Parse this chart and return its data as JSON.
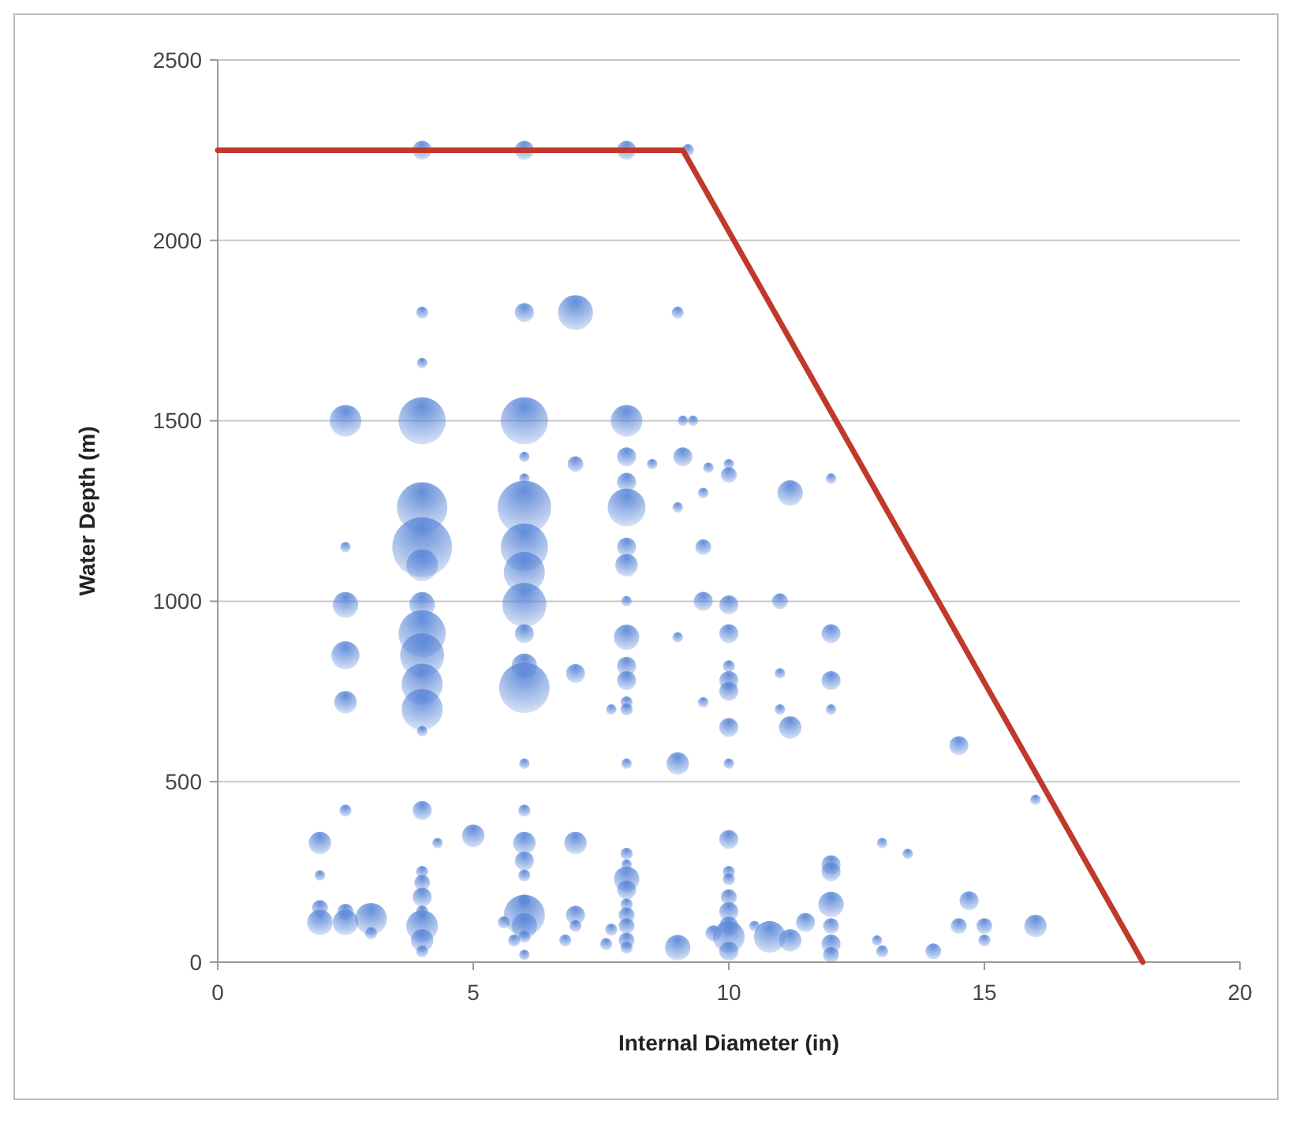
{
  "chart_data": {
    "type": "bubble",
    "xlabel": "Internal Diameter (in)",
    "ylabel": "Water Depth (m)",
    "xlim": [
      0,
      20
    ],
    "xticks": [
      0,
      5,
      10,
      15,
      20
    ],
    "ylim": [
      0,
      2500
    ],
    "yticks": [
      0,
      500,
      1000,
      1500,
      2000,
      2500
    ],
    "grid": "y",
    "relative": false,
    "series": [
      {
        "color": "#5b87d8",
        "x": [
          4,
          6,
          8,
          9.2,
          4,
          6,
          7,
          9,
          4,
          2.5,
          4,
          6,
          8,
          9.1,
          9.3,
          6,
          7,
          8,
          8.5,
          9.1,
          8,
          6,
          9.6,
          10,
          10,
          9.5,
          9,
          11.2,
          12,
          4,
          6,
          8,
          4,
          6,
          4,
          6,
          8,
          8,
          2.5,
          9.5,
          2.5,
          4,
          6,
          8,
          9.5,
          10,
          11,
          4,
          4,
          4,
          4,
          2.5,
          2.5,
          6,
          6,
          6,
          7,
          8,
          8,
          8,
          8,
          8,
          7.7,
          9,
          9.5,
          10,
          10,
          10,
          10,
          10,
          11,
          11,
          11.2,
          12,
          12,
          12,
          14.5,
          6,
          8,
          9,
          10,
          16,
          4,
          2.5,
          4,
          6,
          2,
          4.3,
          5,
          6,
          7,
          8,
          8,
          2,
          4,
          4,
          4,
          4,
          6,
          6,
          6,
          6,
          6,
          6,
          6,
          5.6,
          5.8,
          6.8,
          7,
          7,
          7.7,
          7.6,
          8,
          8,
          8,
          8,
          8,
          8,
          8,
          2,
          2,
          2.5,
          2.5,
          3,
          3,
          4,
          4,
          4,
          9,
          9.7,
          10,
          10,
          10,
          10,
          10,
          10,
          10,
          10,
          10.5,
          10.8,
          11.2,
          11.5,
          12,
          12,
          12,
          12,
          12,
          12,
          12.9,
          13,
          13.5,
          13,
          14,
          14.5,
          14.7,
          15,
          15,
          16
        ],
        "values": [
          2250,
          2250,
          2250,
          2250,
          1800,
          1800,
          1800,
          1800,
          1660,
          1500,
          1500,
          1500,
          1500,
          1500,
          1500,
          1400,
          1380,
          1400,
          1380,
          1400,
          1330,
          1340,
          1370,
          1380,
          1350,
          1300,
          1260,
          1300,
          1340,
          1260,
          1260,
          1260,
          1150,
          1150,
          1100,
          1080,
          1150,
          1100,
          1150,
          1150,
          990,
          990,
          990,
          1000,
          1000,
          990,
          1000,
          910,
          850,
          770,
          700,
          850,
          720,
          910,
          820,
          760,
          800,
          900,
          820,
          780,
          720,
          700,
          700,
          900,
          720,
          910,
          820,
          780,
          750,
          650,
          800,
          700,
          650,
          910,
          780,
          700,
          600,
          550,
          550,
          550,
          550,
          450,
          640,
          420,
          420,
          420,
          330,
          330,
          350,
          330,
          330,
          300,
          270,
          240,
          250,
          220,
          180,
          140,
          280,
          240,
          170,
          130,
          100,
          70,
          20,
          110,
          60,
          60,
          130,
          100,
          90,
          50,
          230,
          200,
          160,
          130,
          100,
          60,
          40,
          150,
          110,
          140,
          110,
          120,
          80,
          100,
          60,
          30,
          40,
          80,
          340,
          250,
          230,
          180,
          140,
          100,
          70,
          30,
          100,
          70,
          60,
          110,
          270,
          250,
          160,
          100,
          50,
          20,
          60,
          330,
          300,
          30,
          30,
          100,
          170,
          100,
          60,
          100
        ],
        "sizes": [
          0.1,
          0.1,
          0.1,
          0.04,
          0.04,
          0.1,
          0.34,
          0.04,
          0.03,
          0.28,
          0.62,
          0.62,
          0.28,
          0.03,
          0.03,
          0.03,
          0.07,
          0.1,
          0.03,
          0.1,
          0.1,
          0.03,
          0.03,
          0.03,
          0.07,
          0.03,
          0.03,
          0.18,
          0.03,
          0.71,
          0.8,
          0.4,
          1,
          0.62,
          0.28,
          0.47,
          0.1,
          0.14,
          0.03,
          0.07,
          0.18,
          0.18,
          0.54,
          0.03,
          0.1,
          0.1,
          0.07,
          0.62,
          0.54,
          0.47,
          0.47,
          0.22,
          0.14,
          0.1,
          0.18,
          0.71,
          0.1,
          0.18,
          0.1,
          0.1,
          0.04,
          0.04,
          0.03,
          0.03,
          0.03,
          0.1,
          0.04,
          0.1,
          0.1,
          0.1,
          0.03,
          0.03,
          0.14,
          0.1,
          0.1,
          0.03,
          0.1,
          0.03,
          0.03,
          0.14,
          0.03,
          0.03,
          0.03,
          0.04,
          0.1,
          0.04,
          0.14,
          0.03,
          0.14,
          0.14,
          0.14,
          0.04,
          0.03,
          0.03,
          0.04,
          0.07,
          0.1,
          0.04,
          0.1,
          0.04,
          0.04,
          0.47,
          0.18,
          0.04,
          0.03,
          0.04,
          0.04,
          0.04,
          0.1,
          0.04,
          0.04,
          0.04,
          0.18,
          0.1,
          0.04,
          0.07,
          0.07,
          0.07,
          0.04,
          0.07,
          0.18,
          0.07,
          0.18,
          0.28,
          0.04,
          0.28,
          0.14,
          0.04,
          0.18,
          0.07,
          0.1,
          0.04,
          0.04,
          0.07,
          0.1,
          0.1,
          0.28,
          0.1,
          0.03,
          0.28,
          0.14,
          0.1,
          0.1,
          0.1,
          0.18,
          0.07,
          0.1,
          0.07,
          0.03,
          0.03,
          0.03,
          0.04,
          0.07,
          0.07,
          0.1,
          0.07,
          0.04,
          0.14
        ]
      },
      {
        "type": "line",
        "color": "#c0392b",
        "x": [
          0,
          9.1,
          18.1
        ],
        "values": [
          2250,
          2250,
          0
        ]
      }
    ]
  }
}
